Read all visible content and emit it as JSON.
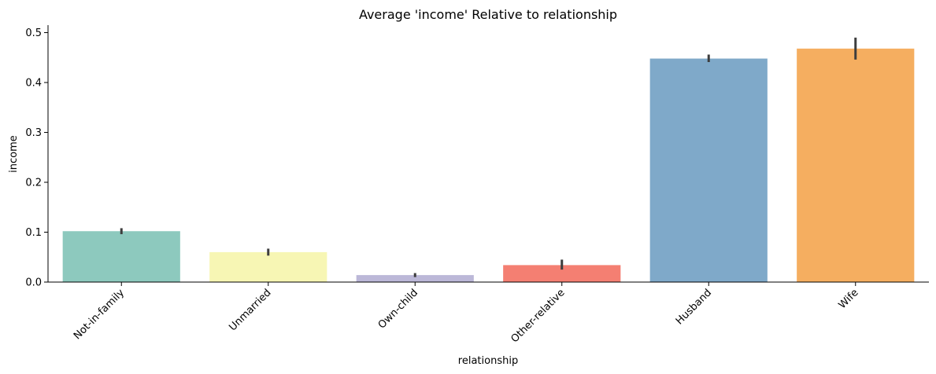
{
  "chart_data": {
    "type": "bar",
    "title": "Average 'income' Relative to relationship",
    "xlabel": "relationship",
    "ylabel": "income",
    "categories": [
      "Not-in-family",
      "Unmarried",
      "Own-child",
      "Other-relative",
      "Husband",
      "Wife"
    ],
    "values": [
      0.102,
      0.06,
      0.014,
      0.034,
      0.448,
      0.468
    ],
    "error_low": [
      0.096,
      0.053,
      0.01,
      0.025,
      0.441,
      0.446
    ],
    "error_high": [
      0.108,
      0.067,
      0.018,
      0.045,
      0.456,
      0.49
    ],
    "colors": [
      "#8dc9be",
      "#f7f6b4",
      "#bcb8d8",
      "#f47f72",
      "#7fa9c9",
      "#f5ae60"
    ],
    "ylim": [
      0,
      0.515
    ],
    "yticks": [
      0.0,
      0.1,
      0.2,
      0.3,
      0.4,
      0.5
    ],
    "ytick_labels": [
      "0.0",
      "0.1",
      "0.2",
      "0.3",
      "0.4",
      "0.5"
    ],
    "grid": false,
    "legend": false
  }
}
